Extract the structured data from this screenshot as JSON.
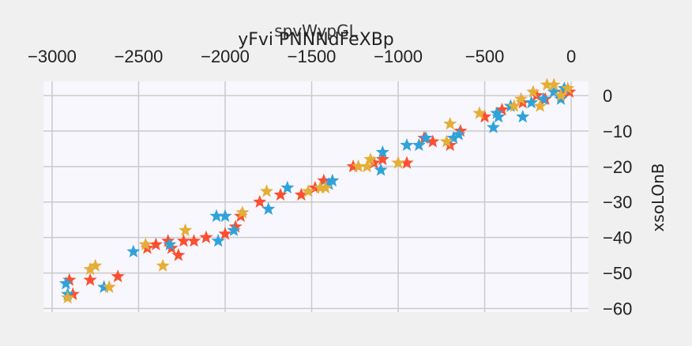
{
  "chart_data": {
    "type": "scatter",
    "title": "yFvi PNNNdFeXBp",
    "xlabel": "spvWypGL",
    "ylabel": "xsoLOnB",
    "xlim": [
      -3050,
      100
    ],
    "ylim": [
      -61,
      4
    ],
    "xticks": [
      -3000,
      -2500,
      -2000,
      -1500,
      -1000,
      -500,
      0
    ],
    "yticks": [
      0,
      -10,
      -20,
      -30,
      -40,
      -50,
      -60
    ],
    "x_axis_position": "top",
    "y_axis_position": "right",
    "grid": true,
    "marker": "star",
    "series": [
      {
        "color": "#fc4f30",
        "points": [
          [
            -2900,
            -52
          ],
          [
            -2880,
            -56
          ],
          [
            -2780,
            -52
          ],
          [
            -2620,
            -51
          ],
          [
            -2450,
            -43
          ],
          [
            -2400,
            -42
          ],
          [
            -2330,
            -41
          ],
          [
            -2310,
            -43
          ],
          [
            -2270,
            -45
          ],
          [
            -2240,
            -41
          ],
          [
            -2180,
            -41
          ],
          [
            -2110,
            -40
          ],
          [
            -2000,
            -39
          ],
          [
            -1940,
            -37
          ],
          [
            -1910,
            -34
          ],
          [
            -1800,
            -30
          ],
          [
            -1680,
            -28
          ],
          [
            -1560,
            -28
          ],
          [
            -1480,
            -26
          ],
          [
            -1430,
            -24
          ],
          [
            -1260,
            -20
          ],
          [
            -1140,
            -19
          ],
          [
            -1090,
            -18
          ],
          [
            -950,
            -19
          ],
          [
            -850,
            -12
          ],
          [
            -800,
            -13
          ],
          [
            -700,
            -14
          ],
          [
            -640,
            -10
          ],
          [
            -500,
            -6
          ],
          [
            -400,
            -4
          ],
          [
            -280,
            -2
          ],
          [
            -200,
            0
          ],
          [
            -150,
            -1
          ],
          [
            -50,
            1
          ],
          [
            -10,
            1
          ]
        ]
      },
      {
        "color": "#30a2da",
        "points": [
          [
            -2920,
            -53
          ],
          [
            -2910,
            -56
          ],
          [
            -2700,
            -54
          ],
          [
            -2530,
            -44
          ],
          [
            -2320,
            -42
          ],
          [
            -2050,
            -34
          ],
          [
            -2000,
            -34
          ],
          [
            -2040,
            -41
          ],
          [
            -1950,
            -38
          ],
          [
            -1750,
            -32
          ],
          [
            -1640,
            -26
          ],
          [
            -1400,
            -25
          ],
          [
            -1380,
            -24
          ],
          [
            -1100,
            -21
          ],
          [
            -1090,
            -16
          ],
          [
            -950,
            -14
          ],
          [
            -880,
            -14
          ],
          [
            -840,
            -12
          ],
          [
            -680,
            -12
          ],
          [
            -650,
            -11
          ],
          [
            -450,
            -9
          ],
          [
            -430,
            -5
          ],
          [
            -420,
            -6
          ],
          [
            -350,
            -3
          ],
          [
            -280,
            -6
          ],
          [
            -230,
            -2
          ],
          [
            -160,
            -1
          ],
          [
            -100,
            1
          ],
          [
            -60,
            -1
          ],
          [
            -40,
            2
          ]
        ]
      },
      {
        "color": "#e5ae38",
        "points": [
          [
            -2910,
            -57
          ],
          [
            -2780,
            -49
          ],
          [
            -2750,
            -48
          ],
          [
            -2670,
            -54
          ],
          [
            -2460,
            -42
          ],
          [
            -2360,
            -48
          ],
          [
            -2230,
            -38
          ],
          [
            -1900,
            -33
          ],
          [
            -1760,
            -27
          ],
          [
            -1520,
            -27
          ],
          [
            -1450,
            -26
          ],
          [
            -1420,
            -26
          ],
          [
            -1230,
            -20
          ],
          [
            -1180,
            -20
          ],
          [
            -1160,
            -18
          ],
          [
            -1000,
            -19
          ],
          [
            -720,
            -13
          ],
          [
            -700,
            -8
          ],
          [
            -530,
            -5
          ],
          [
            -330,
            -3
          ],
          [
            -290,
            -1
          ],
          [
            -220,
            1
          ],
          [
            -180,
            -3
          ],
          [
            -140,
            3
          ],
          [
            -100,
            3
          ],
          [
            -60,
            0
          ],
          [
            -20,
            2
          ]
        ]
      }
    ]
  }
}
